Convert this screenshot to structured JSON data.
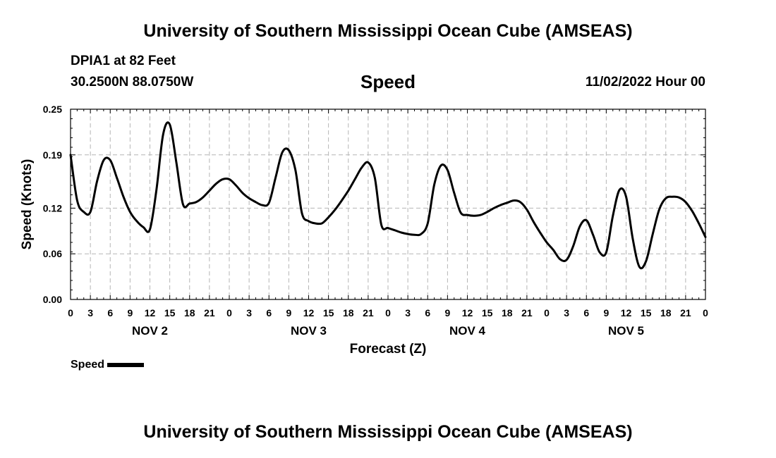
{
  "header": {
    "title": "University of Southern Mississippi Ocean Cube (AMSEAS)",
    "station": "DPIA1 at 82 Feet",
    "coords": "30.2500N  88.0750W",
    "variable": "Speed",
    "datetime": "11/02/2022 Hour 00"
  },
  "footer": {
    "title": "University of Southern Mississippi Ocean Cube (AMSEAS)"
  },
  "legend": {
    "label": "Speed"
  },
  "chart_data": {
    "type": "line",
    "title": "Speed",
    "xlabel": "Forecast (Z)",
    "ylabel": "Speed (Knots)",
    "xlim": [
      0,
      96
    ],
    "ylim": [
      0,
      0.25
    ],
    "yticks": [
      0.0,
      0.06,
      0.12,
      0.19,
      0.25
    ],
    "ytick_labels": [
      "0.00",
      "0.06",
      "0.12",
      "0.19",
      "0.25"
    ],
    "xtick_step_hours": 3,
    "xtick_labels": [
      "0",
      "3",
      "6",
      "9",
      "12",
      "15",
      "18",
      "21",
      "0",
      "3",
      "6",
      "9",
      "12",
      "15",
      "18",
      "21",
      "0",
      "3",
      "6",
      "9",
      "12",
      "15",
      "18",
      "21",
      "0",
      "3",
      "6",
      "9",
      "12",
      "15",
      "18",
      "21",
      "0"
    ],
    "day_labels": [
      {
        "label": "NOV 2",
        "hour": 12
      },
      {
        "label": "NOV 3",
        "hour": 36
      },
      {
        "label": "NOV 4",
        "hour": 60
      },
      {
        "label": "NOV 5",
        "hour": 84
      }
    ],
    "grid": true,
    "series": [
      {
        "name": "Speed",
        "color": "#000000",
        "x": [
          0,
          1,
          2,
          3,
          4,
          5,
          6,
          7,
          8,
          9,
          10,
          11,
          12,
          13,
          14,
          15,
          16,
          17,
          18,
          19,
          20,
          21,
          22,
          23,
          24,
          25,
          26,
          27,
          28,
          29,
          30,
          31,
          32,
          33,
          34,
          35,
          36,
          37,
          38,
          39,
          40,
          41,
          42,
          43,
          44,
          45,
          46,
          47,
          48,
          49,
          50,
          51,
          52,
          53,
          54,
          55,
          56,
          57,
          58,
          59,
          60,
          61,
          62,
          63,
          64,
          65,
          66,
          67,
          68,
          69,
          70,
          71,
          72,
          73,
          74,
          75,
          76,
          77,
          78,
          79,
          80,
          81,
          82,
          83,
          84,
          85,
          86,
          87,
          88,
          89,
          90,
          91,
          92,
          93,
          94,
          95,
          96
        ],
        "values": [
          0.19,
          0.13,
          0.115,
          0.115,
          0.155,
          0.183,
          0.183,
          0.16,
          0.135,
          0.115,
          0.103,
          0.095,
          0.092,
          0.145,
          0.217,
          0.23,
          0.18,
          0.125,
          0.126,
          0.128,
          0.134,
          0.143,
          0.152,
          0.158,
          0.158,
          0.15,
          0.14,
          0.133,
          0.128,
          0.124,
          0.127,
          0.16,
          0.193,
          0.196,
          0.17,
          0.113,
          0.103,
          0.1,
          0.1,
          0.108,
          0.118,
          0.13,
          0.143,
          0.158,
          0.173,
          0.18,
          0.16,
          0.098,
          0.094,
          0.091,
          0.088,
          0.086,
          0.085,
          0.086,
          0.1,
          0.151,
          0.176,
          0.17,
          0.14,
          0.114,
          0.111,
          0.11,
          0.111,
          0.115,
          0.12,
          0.124,
          0.127,
          0.13,
          0.128,
          0.118,
          0.102,
          0.088,
          0.075,
          0.065,
          0.053,
          0.052,
          0.07,
          0.096,
          0.104,
          0.085,
          0.062,
          0.062,
          0.11,
          0.144,
          0.135,
          0.08,
          0.043,
          0.05,
          0.085,
          0.118,
          0.133,
          0.135,
          0.134,
          0.128,
          0.116,
          0.1,
          0.082
        ]
      }
    ]
  }
}
